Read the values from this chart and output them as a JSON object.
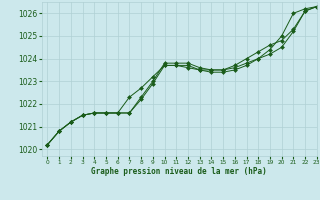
{
  "background_color": "#cce8ec",
  "grid_color": "#b0d0d4",
  "line_color": "#1a5c1a",
  "xlabel": "Graphe pression niveau de la mer (hPa)",
  "xlim": [
    -0.5,
    23
  ],
  "ylim": [
    1019.7,
    1026.5
  ],
  "yticks": [
    1020,
    1021,
    1022,
    1023,
    1024,
    1025,
    1026
  ],
  "xticks": [
    0,
    1,
    2,
    3,
    4,
    5,
    6,
    7,
    8,
    9,
    10,
    11,
    12,
    13,
    14,
    15,
    16,
    17,
    18,
    19,
    20,
    21,
    22,
    23
  ],
  "series": [
    [
      1020.2,
      1020.8,
      1021.2,
      1021.5,
      1021.6,
      1021.6,
      1021.6,
      1021.6,
      1022.3,
      1023.0,
      1023.8,
      1023.8,
      1023.8,
      1023.6,
      1023.5,
      1023.5,
      1023.6,
      1023.8,
      1024.0,
      1024.2,
      1024.5,
      1025.2,
      1026.1,
      1026.3
    ],
    [
      1020.2,
      1020.8,
      1021.2,
      1021.5,
      1021.6,
      1021.6,
      1021.6,
      1021.6,
      1022.2,
      1022.9,
      1023.7,
      1023.7,
      1023.7,
      1023.5,
      1023.4,
      1023.4,
      1023.5,
      1023.7,
      1024.0,
      1024.4,
      1025.0,
      1026.0,
      1026.2,
      1026.3
    ],
    [
      1020.2,
      1020.8,
      1021.2,
      1021.5,
      1021.6,
      1021.6,
      1021.6,
      1022.3,
      1022.7,
      1023.2,
      1023.7,
      1023.7,
      1023.6,
      1023.5,
      1023.5,
      1023.5,
      1023.7,
      1024.0,
      1024.3,
      1024.6,
      1024.8,
      1025.3,
      1026.1,
      1026.3
    ]
  ]
}
